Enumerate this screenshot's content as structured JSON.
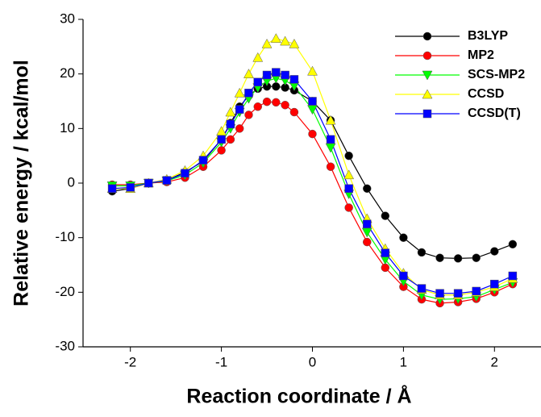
{
  "chart_data": {
    "type": "line",
    "x_label": "Reaction coordinate / Å",
    "y_label": "Relative energy / kcal/mol",
    "x": [
      -2.2,
      -2,
      -1.8,
      -1.6,
      -1.4,
      -1.2,
      -1,
      -0.9,
      -0.8,
      -0.7,
      -0.6,
      -0.5,
      -0.4,
      -0.3,
      -0.2,
      0,
      0.2,
      0.4,
      0.6,
      0.8,
      1,
      1.2,
      1.4,
      1.6,
      1.8,
      2,
      2.2
    ],
    "series": [
      {
        "name": "B3LYP",
        "color": "#000000",
        "marker": "circle",
        "values": [
          -1.5,
          -1,
          0,
          0.5,
          2,
          4,
          8,
          11,
          14,
          16,
          17.3,
          17.7,
          17.7,
          17.5,
          17,
          15,
          11.5,
          5,
          -1,
          -6,
          -10,
          -12.7,
          -13.7,
          -13.8,
          -13.7,
          -12.5,
          -11.2
        ]
      },
      {
        "name": "MP2",
        "color": "#ff0000",
        "marker": "circle",
        "values": [
          -0.3,
          -0.3,
          0,
          0.2,
          1,
          3,
          6,
          8,
          10,
          12.5,
          14,
          14.9,
          14.8,
          14.3,
          13,
          9,
          3,
          -4.5,
          -10.8,
          -15.5,
          -19,
          -21.3,
          -22,
          -21.8,
          -21.2,
          -20,
          -18.5
        ]
      },
      {
        "name": "SCS-MP2",
        "color": "#00ff00",
        "marker": "triangle-down",
        "values": [
          -0.5,
          -0.5,
          0,
          0.4,
          1.5,
          3.7,
          7.5,
          10,
          13,
          15.5,
          17.5,
          18.7,
          19.2,
          18.8,
          17.8,
          13.5,
          6.5,
          -2,
          -9,
          -14,
          -18,
          -20.5,
          -21.3,
          -21.2,
          -20.8,
          -19.5,
          -18.2
        ]
      },
      {
        "name": "CCSD",
        "color": "#ffff00",
        "marker": "triangle-up",
        "values": [
          -1,
          -1,
          0,
          0.7,
          2.3,
          5,
          9.5,
          13,
          16.5,
          20,
          23,
          25.5,
          26.5,
          26,
          25.5,
          20.5,
          11.5,
          1.5,
          -6.5,
          -12,
          -16.5,
          -19.5,
          -20.5,
          -20.5,
          -20,
          -19,
          -17.5
        ]
      },
      {
        "name": "CCSD(T)",
        "color": "#0000ff",
        "marker": "square",
        "values": [
          -1,
          -0.8,
          0,
          0.5,
          1.8,
          4.2,
          8,
          10.8,
          13.5,
          16.5,
          18.5,
          19.8,
          20.3,
          19.8,
          19,
          15,
          8,
          -1,
          -7.5,
          -12.8,
          -17,
          -19.3,
          -20.2,
          -20.2,
          -19.8,
          -18.5,
          -17
        ]
      }
    ],
    "xlim": [
      -2.52,
      2.52
    ],
    "ylim": [
      -30,
      30
    ],
    "xticks": [
      -2,
      -1,
      0,
      1,
      2
    ],
    "yticks": [
      -30,
      -20,
      -10,
      0,
      10,
      20,
      30
    ],
    "legend": "top-right",
    "grid": false
  }
}
